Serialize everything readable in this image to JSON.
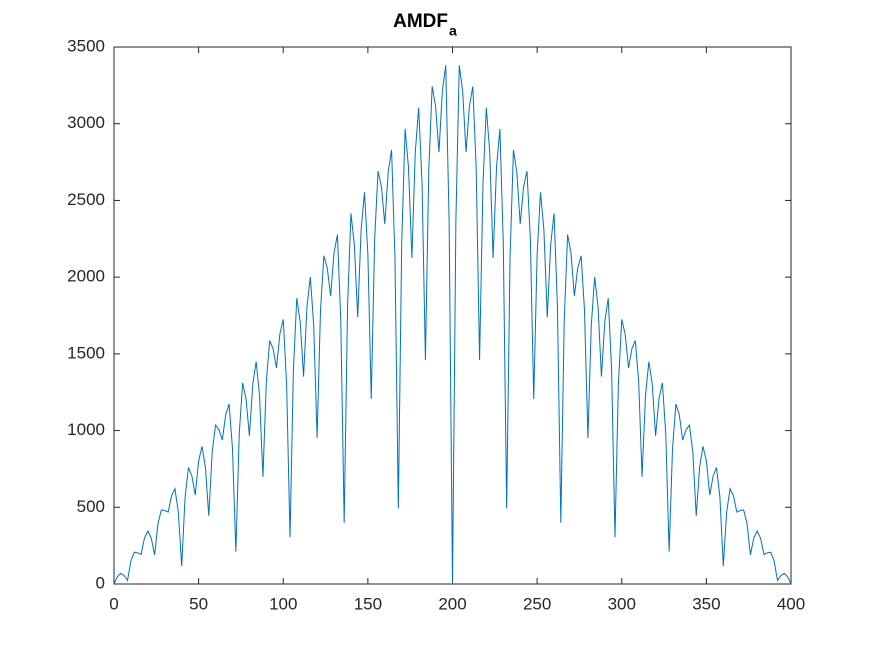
{
  "chart_data": {
    "type": "line",
    "title": "AMDF",
    "title_subscript": "a",
    "color": "#0072bd",
    "x": [
      0,
      2,
      4,
      6,
      8,
      10,
      12,
      14,
      16,
      18,
      20,
      22,
      24,
      26,
      28,
      30,
      32,
      34,
      36,
      38,
      40,
      42,
      44,
      46,
      48,
      50,
      52,
      54,
      56,
      58,
      60,
      62,
      64,
      66,
      68,
      70,
      72,
      74,
      76,
      78,
      80,
      82,
      84,
      86,
      88,
      90,
      92,
      94,
      96,
      98,
      100,
      102,
      104,
      106,
      108,
      110,
      112,
      114,
      116,
      118,
      120,
      122,
      124,
      126,
      128,
      130,
      132,
      134,
      136,
      138,
      140,
      142,
      144,
      146,
      148,
      150,
      152,
      154,
      156,
      158,
      160,
      162,
      164,
      166,
      168,
      170,
      172,
      174,
      176,
      178,
      180,
      182,
      184,
      186,
      188,
      190,
      192,
      194,
      196,
      198,
      200,
      202,
      204,
      206,
      208,
      210,
      212,
      214,
      216,
      218,
      220,
      222,
      224,
      226,
      228,
      230,
      232,
      234,
      236,
      238,
      240,
      242,
      244,
      246,
      248,
      250,
      252,
      254,
      256,
      258,
      260,
      262,
      264,
      266,
      268,
      270,
      272,
      274,
      276,
      278,
      280,
      282,
      284,
      286,
      288,
      290,
      292,
      294,
      296,
      298,
      300,
      302,
      304,
      306,
      308,
      310,
      312,
      314,
      316,
      318,
      320,
      322,
      324,
      326,
      328,
      330,
      332,
      334,
      336,
      338,
      340,
      342,
      344,
      346,
      348,
      350,
      352,
      354,
      356,
      358,
      360,
      362,
      364,
      366,
      368,
      370,
      372,
      374,
      376,
      378,
      380,
      382,
      384,
      386,
      388,
      390,
      392,
      394,
      396,
      398,
      400
    ],
    "values": [
      0,
      48,
      69,
      55,
      23,
      152,
      207,
      203,
      193,
      299,
      345,
      299,
      190,
      395,
      483,
      479,
      469,
      575,
      621,
      470,
      117,
      566,
      759,
      705,
      580,
      802,
      897,
      761,
      444,
      858,
      1035,
      1006,
      938,
      1103,
      1173,
      884,
      211,
      981,
      1311,
      1208,
      966,
      1304,
      1449,
      1224,
      698,
      1320,
      1587,
      1533,
      1408,
      1630,
      1725,
      1299,
      305,
      1396,
      1863,
      1710,
      1352,
      1806,
      2001,
      1686,
      952,
      1783,
      2139,
      2060,
      1877,
      2157,
      2277,
      1714,
      399,
      1810,
      2415,
      2212,
      1739,
      2309,
      2553,
      2149,
      1206,
      2246,
      2691,
      2588,
      2346,
      2684,
      2829,
      2128,
      493,
      2225,
      2967,
      2714,
      2125,
      2811,
      3105,
      2612,
      1460,
      2708,
      3243,
      3115,
      2815,
      3211,
      3381,
      2367,
      0,
      2367,
      3381,
      3211,
      2815,
      3115,
      3243,
      2708,
      1460,
      2612,
      3105,
      2811,
      2125,
      2714,
      2967,
      2225,
      493,
      2128,
      2829,
      2684,
      2346,
      2588,
      2691,
      2246,
      1206,
      2149,
      2553,
      2309,
      1739,
      2212,
      2415,
      1810,
      399,
      1714,
      2277,
      2157,
      1877,
      2060,
      2139,
      1783,
      952,
      1686,
      2001,
      1806,
      1352,
      1710,
      1863,
      1396,
      305,
      1299,
      1725,
      1630,
      1408,
      1533,
      1587,
      1320,
      698,
      1224,
      1449,
      1304,
      966,
      1208,
      1311,
      981,
      211,
      884,
      1173,
      1103,
      938,
      1006,
      1035,
      858,
      444,
      761,
      897,
      802,
      580,
      705,
      759,
      566,
      117,
      470,
      621,
      575,
      469,
      479,
      483,
      395,
      190,
      299,
      345,
      299,
      193,
      203,
      207,
      152,
      23,
      55,
      69,
      48,
      0
    ],
    "xlim": [
      0,
      400
    ],
    "xticks": [
      0,
      50,
      100,
      150,
      200,
      250,
      300,
      350,
      400
    ],
    "ylim": [
      0,
      3500
    ],
    "yticks": [
      0,
      500,
      1000,
      1500,
      2000,
      2500,
      3000,
      3500
    ],
    "grid": false
  }
}
